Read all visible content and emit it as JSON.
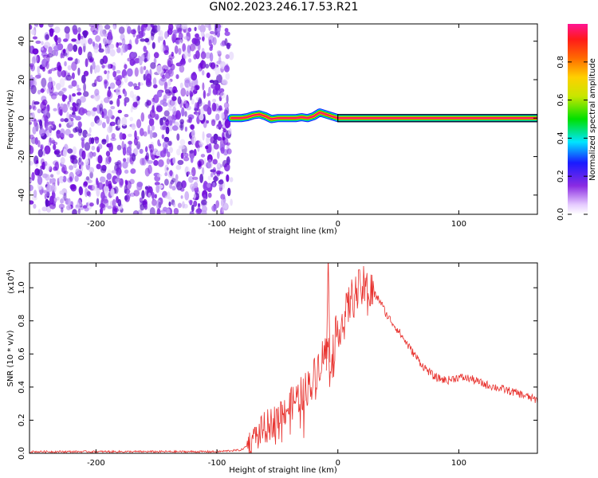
{
  "title": "GN02.2023.246.17.53.R21",
  "chart_data": [
    {
      "type": "heatmap",
      "xlabel": "Height of straight line (km)",
      "ylabel": "Frequency (Hz)",
      "xlim": [
        -255,
        165
      ],
      "ylim": [
        -50,
        49
      ],
      "xticks": [
        -200,
        -100,
        0,
        100
      ],
      "yticks": [
        -40,
        -20,
        0,
        20,
        40
      ],
      "noise_region_x": [
        -255,
        -88
      ],
      "ridge": {
        "x": [
          -88,
          -80,
          -75,
          -70,
          -65,
          -60,
          -55,
          -50,
          -45,
          -40,
          -35,
          -30,
          -25,
          -20,
          -15,
          -10,
          -5,
          0,
          50,
          100,
          165
        ],
        "frequency": [
          0,
          0,
          0.5,
          1.5,
          2,
          1,
          -0.5,
          0,
          0,
          0,
          0,
          0.5,
          0,
          1,
          3,
          2,
          1,
          0,
          0,
          0,
          0
        ]
      },
      "colorbar": {
        "label": "Normalized spectral amplitude",
        "ticks": [
          0.0,
          0.2,
          0.4,
          0.6,
          0.8
        ],
        "range": [
          0,
          1
        ]
      },
      "grid": false
    },
    {
      "type": "line",
      "xlabel": "Height of straight line (km)",
      "ylabel": "SNR (10 * v/v)",
      "multiplier": "(x10",
      "multiplier_exp": "4",
      "xlim": [
        -255,
        165
      ],
      "ylim": [
        0,
        1.15
      ],
      "xticks": [
        -200,
        -100,
        0,
        100
      ],
      "yticks": [
        0.0,
        0.2,
        0.4,
        0.6,
        0.8,
        1.0
      ],
      "series": [
        {
          "color": "#e8322e",
          "x": [
            -255,
            -200,
            -150,
            -100,
            -80,
            -70,
            -65,
            -60,
            -55,
            -50,
            -45,
            -40,
            -35,
            -30,
            -25,
            -20,
            -15,
            -10,
            -5,
            0,
            5,
            10,
            15,
            20,
            25,
            30,
            35,
            40,
            50,
            60,
            70,
            80,
            90,
            100,
            110,
            120,
            130,
            140,
            150,
            165
          ],
          "y": [
            0.01,
            0.01,
            0.01,
            0.01,
            0.02,
            0.07,
            0.12,
            0.16,
            0.18,
            0.22,
            0.26,
            0.28,
            0.33,
            0.36,
            0.4,
            0.46,
            0.55,
            0.62,
            0.6,
            0.76,
            0.8,
            0.92,
            0.96,
            1.0,
            0.99,
            0.96,
            0.92,
            0.84,
            0.74,
            0.63,
            0.53,
            0.46,
            0.44,
            0.46,
            0.45,
            0.42,
            0.4,
            0.38,
            0.36,
            0.32
          ]
        }
      ],
      "peak": {
        "x": -8,
        "y": 1.2
      },
      "grid": false
    }
  ]
}
